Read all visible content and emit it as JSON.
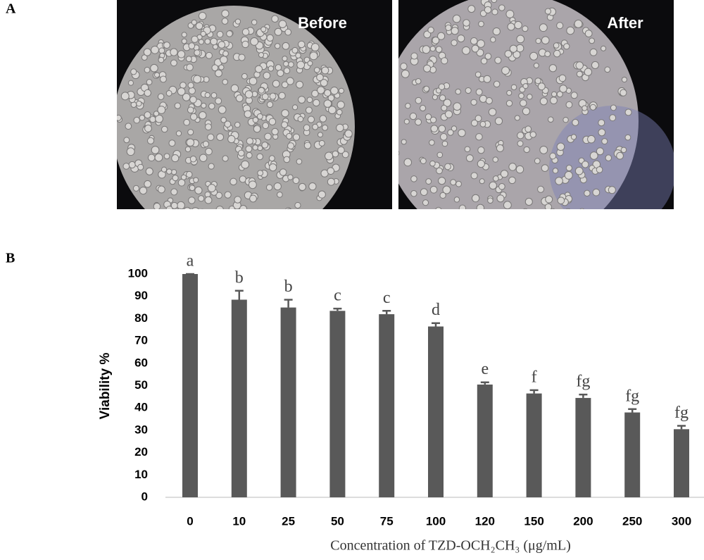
{
  "panel_labels": [
    "A",
    "B"
  ],
  "images": [
    {
      "label": "Before"
    },
    {
      "label": "After"
    }
  ],
  "chart_data": {
    "type": "bar",
    "ylabel": "Viability %",
    "xlabel": "Concentration of TZD-OCH₂CH₃ (μg/mL)",
    "categories": [
      "0",
      "10",
      "25",
      "50",
      "75",
      "100",
      "120",
      "150",
      "200",
      "250",
      "300"
    ],
    "values": [
      100,
      88.5,
      85,
      83.5,
      82,
      76.5,
      50.5,
      46.5,
      44.5,
      38,
      30.5
    ],
    "errors": [
      0,
      4,
      3.5,
      1,
      1.5,
      1.5,
      1,
      1.5,
      1.5,
      1.5,
      1.5
    ],
    "annotations": [
      "a",
      "b",
      "b",
      "c",
      "c",
      "d",
      "e",
      "f",
      "fg",
      "fg",
      "fg"
    ],
    "color": "#595959",
    "ylim": [
      0,
      100
    ],
    "yticks": [
      0,
      10,
      20,
      30,
      40,
      50,
      60,
      70,
      80,
      90,
      100
    ],
    "grid": false
  }
}
